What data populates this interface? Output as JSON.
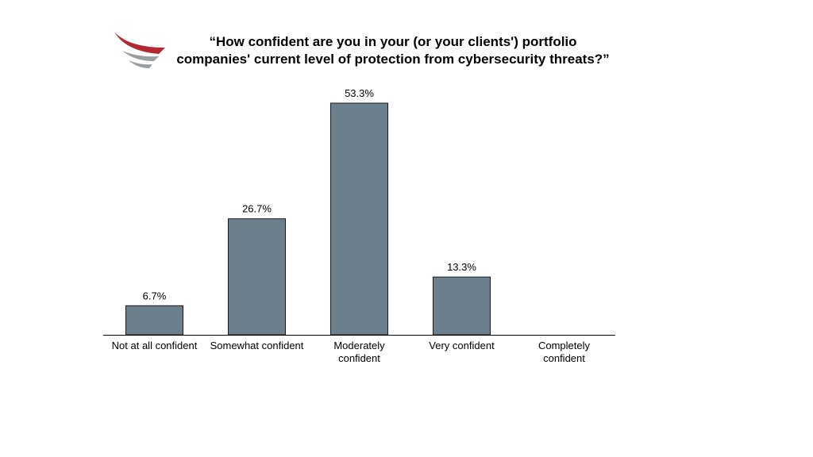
{
  "chart_data": {
    "type": "bar",
    "title_lines": [
      "“How confident are you in your (or your clients') portfolio",
      "companies' current level of protection from cybersecurity threats?”"
    ],
    "categories": [
      [
        "Not at all confident"
      ],
      [
        "Somewhat confident"
      ],
      [
        "Moderately",
        "confident"
      ],
      [
        "Very confident"
      ],
      [
        "Completely",
        "confident"
      ]
    ],
    "values": [
      6.7,
      26.7,
      53.3,
      13.3,
      0
    ],
    "data_labels": [
      "6.7%",
      "26.7%",
      "53.3%",
      "13.3%",
      ""
    ],
    "ylim": [
      0,
      53.3
    ],
    "grid": false,
    "legend": "none",
    "bar_color": "#6c7f8c",
    "bar_edge_color": "#1a1a1a"
  },
  "logo": {
    "icon": "red-gray-wing-logo-icon",
    "colors": [
      "#b22a30",
      "#9a9ea3"
    ]
  }
}
